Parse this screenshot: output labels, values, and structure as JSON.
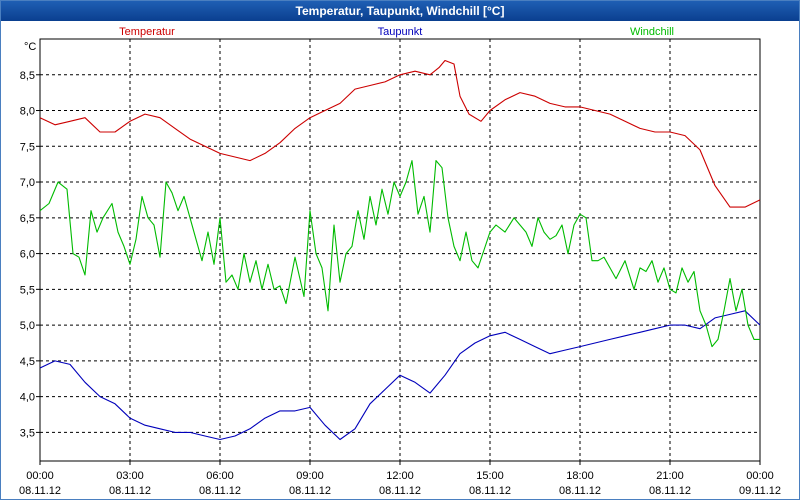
{
  "window": {
    "title": "Temperatur, Taupunkt, Windchill [°C]"
  },
  "chart_data": {
    "type": "line",
    "title": "Temperatur, Taupunkt, Windchill [°C]",
    "ylabel": "°C",
    "ylim": [
      3.1,
      9.0
    ],
    "y_ticks": [
      "3,5",
      "4,0",
      "4,5",
      "5,0",
      "5,5",
      "6,0",
      "6,5",
      "7,0",
      "7,5",
      "8,0",
      "8,5"
    ],
    "y_tick_values": [
      3.5,
      4.0,
      4.5,
      5.0,
      5.5,
      6.0,
      6.5,
      7.0,
      7.5,
      8.0,
      8.5
    ],
    "x_ticks": [
      {
        "time": "00:00",
        "date": "08.11.12",
        "h": 0
      },
      {
        "time": "03:00",
        "date": "08.11.12",
        "h": 3
      },
      {
        "time": "06:00",
        "date": "08.11.12",
        "h": 6
      },
      {
        "time": "09:00",
        "date": "08.11.12",
        "h": 9
      },
      {
        "time": "12:00",
        "date": "08.11.12",
        "h": 12
      },
      {
        "time": "15:00",
        "date": "08.11.12",
        "h": 15
      },
      {
        "time": "18:00",
        "date": "08.11.12",
        "h": 18
      },
      {
        "time": "21:00",
        "date": "08.11.12",
        "h": 21
      },
      {
        "time": "00:00",
        "date": "09.11.12",
        "h": 24
      }
    ],
    "xlim": [
      0,
      24
    ],
    "grid": true,
    "legend_placement": "top",
    "series": [
      {
        "name": "Temperatur",
        "color": "#cc0000",
        "x": [
          0,
          0.5,
          1,
          1.5,
          2,
          2.5,
          3,
          3.5,
          4,
          4.5,
          5,
          5.5,
          6,
          6.5,
          7,
          7.5,
          8,
          8.5,
          9,
          9.5,
          10,
          10.5,
          11,
          11.5,
          12,
          12.5,
          13,
          13.3,
          13.5,
          13.8,
          14,
          14.3,
          14.7,
          15,
          15.5,
          16,
          16.5,
          17,
          17.5,
          18,
          18.5,
          19,
          19.5,
          20,
          20.5,
          21,
          21.5,
          22,
          22.5,
          23,
          23.5,
          24
        ],
        "y": [
          7.9,
          7.8,
          7.85,
          7.9,
          7.7,
          7.7,
          7.85,
          7.95,
          7.9,
          7.75,
          7.6,
          7.5,
          7.4,
          7.35,
          7.3,
          7.4,
          7.55,
          7.75,
          7.9,
          8.0,
          8.1,
          8.3,
          8.35,
          8.4,
          8.5,
          8.55,
          8.5,
          8.6,
          8.7,
          8.65,
          8.2,
          7.95,
          7.85,
          8.0,
          8.15,
          8.25,
          8.2,
          8.1,
          8.05,
          8.05,
          8.0,
          7.95,
          7.85,
          7.75,
          7.7,
          7.7,
          7.65,
          7.45,
          6.95,
          6.65,
          6.65,
          6.75
        ]
      },
      {
        "name": "Taupunkt",
        "color": "#0000bb",
        "x": [
          0,
          0.5,
          1,
          1.5,
          2,
          2.5,
          3,
          3.5,
          4,
          4.5,
          5,
          5.5,
          6,
          6.5,
          7,
          7.5,
          8,
          8.5,
          9,
          9.5,
          10,
          10.5,
          11,
          11.5,
          12,
          12.5,
          13,
          13.5,
          14,
          14.5,
          15,
          15.5,
          16,
          16.5,
          17,
          17.5,
          18,
          18.5,
          19,
          19.5,
          20,
          20.5,
          21,
          21.5,
          22,
          22.5,
          23,
          23.5,
          24
        ],
        "y": [
          4.4,
          4.5,
          4.45,
          4.2,
          4.0,
          3.9,
          3.7,
          3.6,
          3.55,
          3.5,
          3.5,
          3.45,
          3.4,
          3.45,
          3.55,
          3.7,
          3.8,
          3.8,
          3.85,
          3.6,
          3.4,
          3.55,
          3.9,
          4.1,
          4.3,
          4.2,
          4.05,
          4.3,
          4.6,
          4.75,
          4.85,
          4.9,
          4.8,
          4.7,
          4.6,
          4.65,
          4.7,
          4.75,
          4.8,
          4.85,
          4.9,
          4.95,
          5.0,
          5.0,
          4.95,
          5.1,
          5.15,
          5.2,
          5.0
        ]
      },
      {
        "name": "Windchill",
        "color": "#00bb00",
        "x": [
          0,
          0.3,
          0.6,
          0.9,
          1.1,
          1.3,
          1.5,
          1.7,
          1.9,
          2.1,
          2.4,
          2.6,
          2.8,
          3.0,
          3.2,
          3.4,
          3.6,
          3.8,
          4.0,
          4.2,
          4.4,
          4.6,
          4.8,
          5.0,
          5.2,
          5.4,
          5.6,
          5.8,
          6.0,
          6.2,
          6.4,
          6.6,
          6.8,
          7.0,
          7.2,
          7.4,
          7.6,
          7.8,
          8.0,
          8.2,
          8.5,
          8.8,
          9.0,
          9.2,
          9.4,
          9.6,
          9.8,
          10.0,
          10.2,
          10.4,
          10.6,
          10.8,
          11.0,
          11.2,
          11.4,
          11.6,
          11.8,
          12.0,
          12.2,
          12.4,
          12.6,
          12.8,
          13.0,
          13.2,
          13.4,
          13.6,
          13.8,
          14.0,
          14.2,
          14.4,
          14.6,
          14.8,
          15.0,
          15.2,
          15.5,
          15.8,
          16.0,
          16.2,
          16.4,
          16.6,
          16.8,
          17.0,
          17.2,
          17.4,
          17.6,
          17.8,
          18.0,
          18.2,
          18.4,
          18.6,
          18.8,
          19.0,
          19.2,
          19.5,
          19.8,
          20.0,
          20.2,
          20.4,
          20.6,
          20.8,
          21.0,
          21.2,
          21.4,
          21.6,
          21.8,
          22.0,
          22.2,
          22.4,
          22.6,
          22.8,
          23.0,
          23.2,
          23.4,
          23.6,
          23.8,
          24.0
        ],
        "y": [
          6.6,
          6.7,
          7.0,
          6.9,
          6.0,
          5.95,
          5.7,
          6.6,
          6.3,
          6.5,
          6.7,
          6.3,
          6.1,
          5.85,
          6.2,
          6.8,
          6.5,
          6.4,
          5.95,
          7.0,
          6.85,
          6.6,
          6.8,
          6.5,
          6.2,
          5.9,
          6.3,
          5.85,
          6.5,
          5.6,
          5.7,
          5.5,
          6.0,
          5.6,
          5.9,
          5.5,
          5.85,
          5.5,
          5.55,
          5.3,
          5.95,
          5.4,
          6.6,
          6.0,
          5.8,
          5.2,
          6.4,
          5.6,
          6.0,
          6.1,
          6.6,
          6.2,
          6.8,
          6.4,
          6.9,
          6.55,
          7.0,
          6.8,
          7.0,
          7.3,
          6.55,
          6.8,
          6.3,
          7.3,
          7.2,
          6.5,
          6.1,
          5.9,
          6.3,
          5.9,
          5.8,
          6.05,
          6.3,
          6.4,
          6.3,
          6.5,
          6.4,
          6.3,
          6.1,
          6.5,
          6.3,
          6.2,
          6.25,
          6.4,
          6.0,
          6.4,
          6.55,
          6.5,
          5.9,
          5.9,
          5.95,
          5.8,
          5.65,
          5.9,
          5.5,
          5.8,
          5.75,
          5.9,
          5.6,
          5.8,
          5.5,
          5.45,
          5.8,
          5.6,
          5.75,
          5.2,
          5.0,
          4.7,
          4.8,
          5.2,
          5.65,
          5.2,
          5.5,
          5.0,
          4.8,
          4.8
        ]
      }
    ]
  }
}
